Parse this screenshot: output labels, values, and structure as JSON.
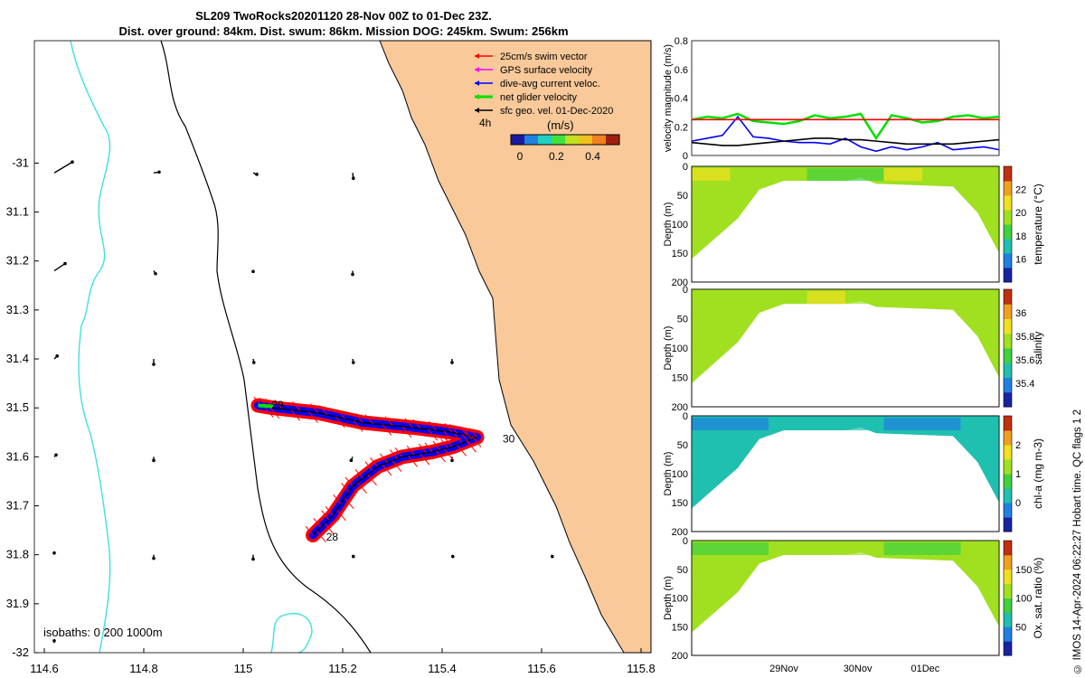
{
  "title_line1": "SL209 TwoRocks20201120 28-Nov 00Z to 01-Dec 23Z.",
  "title_line2": "Dist. over ground: 84km. Dist. swum: 86km. Mission DOG: 245km. Swum: 256km",
  "footer": "© IMOS 14-Apr-2024 06:22:27 Hobart time. QC flags 1  2",
  "colors": {
    "land": "#f9c99a",
    "coast": "#000000",
    "isobath": "#40e0e0",
    "track": "#0000ff",
    "swim": "#ff0000",
    "net": "#00e000",
    "geo": "#000000",
    "gps": "#ff00ff"
  },
  "chart_data": [
    {
      "type": "scatter",
      "name": "track map",
      "x_ticks": [
        "114.6",
        "114.8",
        "115",
        "115.2",
        "115.4",
        "115.6",
        "115.8"
      ],
      "y_ticks": [
        "-31",
        "31.1",
        "31.2",
        "31.3",
        "31.4",
        "31.5",
        "31.6",
        "31.7",
        "31.8",
        "31.9",
        "-32"
      ],
      "xlim": [
        114.58,
        115.82
      ],
      "ylim": [
        -32.0,
        -30.75
      ],
      "legend": [
        {
          "label": "25cm/s swim vector",
          "color": "#ff0000"
        },
        {
          "label": "GPS surface velocity",
          "color": "#ff00ff"
        },
        {
          "label": "dive-avg current veloc.",
          "color": "#0000ff"
        },
        {
          "label": "net glider velocity",
          "color": "#00e000"
        },
        {
          "label": "sfc geo. vel. 01-Dec-2020",
          "color": "#000000"
        }
      ],
      "legend_scale_label": "4h",
      "colorbar_label": "(m/s)",
      "colorbar_ticks": [
        "0",
        "0.2",
        "0.4"
      ],
      "isobath_note": "isobaths: 0   200  1000m",
      "day_labels": [
        "28",
        "29",
        "30"
      ],
      "track": [
        [
          115.14,
          -31.76
        ],
        [
          115.18,
          -31.72
        ],
        [
          115.22,
          -31.66
        ],
        [
          115.27,
          -31.62
        ],
        [
          115.32,
          -31.6
        ],
        [
          115.38,
          -31.59
        ],
        [
          115.42,
          -31.58
        ],
        [
          115.47,
          -31.56
        ],
        [
          115.42,
          -31.55
        ],
        [
          115.34,
          -31.54
        ],
        [
          115.24,
          -31.53
        ],
        [
          115.15,
          -31.51
        ],
        [
          115.06,
          -31.5
        ],
        [
          115.03,
          -31.495
        ]
      ],
      "geo_vectors": [
        {
          "lon": 114.62,
          "lat": -31.02,
          "u": 0.5,
          "v": 0.3
        },
        {
          "lon": 114.82,
          "lat": -31.02,
          "u": 0.15,
          "v": 0.02
        },
        {
          "lon": 115.02,
          "lat": -31.02,
          "u": 0.1,
          "v": -0.04
        },
        {
          "lon": 115.22,
          "lat": -31.02,
          "u": 0.02,
          "v": -0.15
        },
        {
          "lon": 114.62,
          "lat": -31.22,
          "u": 0.3,
          "v": 0.2
        },
        {
          "lon": 114.82,
          "lat": -31.22,
          "u": 0.05,
          "v": -0.08
        },
        {
          "lon": 115.02,
          "lat": -31.22,
          "u": 0.0,
          "v": -0.02
        },
        {
          "lon": 115.22,
          "lat": -31.22,
          "u": 0.0,
          "v": -0.1
        },
        {
          "lon": 114.62,
          "lat": -31.4,
          "u": 0.08,
          "v": 0.08
        },
        {
          "lon": 114.82,
          "lat": -31.4,
          "u": 0.0,
          "v": -0.15
        },
        {
          "lon": 115.02,
          "lat": -31.4,
          "u": 0.02,
          "v": -0.1
        },
        {
          "lon": 115.22,
          "lat": -31.4,
          "u": 0.02,
          "v": -0.1
        },
        {
          "lon": 115.42,
          "lat": -31.4,
          "u": 0.0,
          "v": -0.1
        },
        {
          "lon": 114.62,
          "lat": -31.6,
          "u": 0.05,
          "v": 0.05
        },
        {
          "lon": 114.82,
          "lat": -31.6,
          "u": 0.0,
          "v": -0.1
        },
        {
          "lon": 115.22,
          "lat": -31.6,
          "u": -0.04,
          "v": -0.1
        },
        {
          "lon": 115.42,
          "lat": -31.6,
          "u": 0.0,
          "v": -0.1
        },
        {
          "lon": 114.62,
          "lat": -31.8,
          "u": 0.0,
          "v": 0.05
        },
        {
          "lon": 114.82,
          "lat": -31.8,
          "u": 0.0,
          "v": -0.1
        },
        {
          "lon": 115.02,
          "lat": -31.8,
          "u": 0.0,
          "v": -0.12
        },
        {
          "lon": 115.22,
          "lat": -31.8,
          "u": 0.02,
          "v": -0.05
        },
        {
          "lon": 115.42,
          "lat": -31.8,
          "u": 0.02,
          "v": -0.05
        },
        {
          "lon": 115.62,
          "lat": -31.8,
          "u": 0.02,
          "v": -0.05
        },
        {
          "lon": 114.62,
          "lat": -31.98,
          "u": 0.0,
          "v": 0.06
        }
      ]
    },
    {
      "type": "line",
      "name": "velocity",
      "ylabel": "velocity magnitude (m/s)",
      "ylim": [
        0,
        0.8
      ],
      "y_ticks": [
        "0",
        "0.2",
        "0.4",
        "0.6",
        "0.8"
      ],
      "x": [
        0,
        0.05,
        0.1,
        0.15,
        0.2,
        0.25,
        0.3,
        0.35,
        0.4,
        0.45,
        0.5,
        0.55,
        0.6,
        0.65,
        0.7,
        0.75,
        0.8,
        0.85,
        0.9,
        0.95,
        1.0
      ],
      "series": [
        {
          "color": "#00e000",
          "values": [
            0.25,
            0.27,
            0.26,
            0.29,
            0.24,
            0.23,
            0.22,
            0.24,
            0.28,
            0.26,
            0.27,
            0.29,
            0.12,
            0.28,
            0.26,
            0.23,
            0.24,
            0.27,
            0.28,
            0.26,
            0.27
          ]
        },
        {
          "color": "#0000ff",
          "values": [
            0.1,
            0.12,
            0.14,
            0.27,
            0.13,
            0.12,
            0.1,
            0.09,
            0.09,
            0.08,
            0.12,
            0.06,
            0.03,
            0.06,
            0.04,
            0.06,
            0.09,
            0.04,
            0.05,
            0.06,
            0.04
          ]
        },
        {
          "color": "#000000",
          "values": [
            0.09,
            0.08,
            0.07,
            0.07,
            0.08,
            0.09,
            0.1,
            0.11,
            0.12,
            0.12,
            0.11,
            0.11,
            0.1,
            0.09,
            0.08,
            0.08,
            0.08,
            0.08,
            0.09,
            0.1,
            0.11
          ]
        },
        {
          "color": "#ff0000",
          "values": [
            0.25,
            0.25,
            0.25,
            0.25,
            0.25,
            0.25,
            0.25,
            0.25,
            0.25,
            0.25,
            0.25,
            0.25,
            0.25,
            0.25,
            0.25,
            0.25,
            0.25,
            0.25,
            0.25,
            0.25,
            0.25
          ]
        }
      ]
    },
    {
      "type": "heatmap",
      "name": "temperature",
      "ylabel": "Depth (m)",
      "ylim": [
        200,
        0
      ],
      "y_ticks": [
        "0",
        "50",
        "100",
        "150",
        "200"
      ],
      "colorbar_label": "temperature (°C)",
      "colorbar_ticks": [
        "16",
        "18",
        "20",
        "22"
      ],
      "palette": [
        "#1a22a0",
        "#2080e0",
        "#20c0b0",
        "#40d040",
        "#a0e020",
        "#f0e020",
        "#f0a020",
        "#c03010"
      ],
      "levels": [
        0.7,
        0.62,
        0.56,
        0.45,
        0.4
      ]
    },
    {
      "type": "heatmap",
      "name": "salinity",
      "ylabel": "Depth (m)",
      "ylim": [
        200,
        0
      ],
      "y_ticks": [
        "0",
        "50",
        "100",
        "150",
        "200"
      ],
      "colorbar_label": "salinity",
      "colorbar_ticks": [
        "35.4",
        "35.6",
        "35.8",
        "36"
      ],
      "palette": [
        "#1a22a0",
        "#2080e0",
        "#20c0b0",
        "#40d040",
        "#a0e020",
        "#f0e020",
        "#f0a020",
        "#c03010"
      ],
      "levels": [
        0.5,
        0.55,
        0.62,
        0.65,
        0.58
      ]
    },
    {
      "type": "heatmap",
      "name": "chl-a",
      "ylabel": "Depth (m)",
      "ylim": [
        200,
        0
      ],
      "y_ticks": [
        "0",
        "50",
        "100",
        "150",
        "200"
      ],
      "colorbar_label": "chl-a (mg m-3)",
      "colorbar_ticks": [
        "0",
        "1",
        "2"
      ],
      "palette": [
        "#1a22a0",
        "#2080e0",
        "#20c0b0",
        "#40d040",
        "#a0e020",
        "#f0e020",
        "#f0a020",
        "#c03010"
      ],
      "levels": [
        0.15,
        0.2,
        0.25,
        0.3,
        0.35
      ]
    },
    {
      "type": "heatmap",
      "name": "oxygen",
      "ylabel": "Depth (m)",
      "ylim": [
        200,
        0
      ],
      "y_ticks": [
        "0",
        "50",
        "100",
        "150",
        "200"
      ],
      "colorbar_label": "Ox. sat. ratio (%)",
      "colorbar_ticks": [
        "50",
        "100",
        "150"
      ],
      "x_ticks": [
        "29Nov",
        "30Nov",
        "01Dec"
      ],
      "palette": [
        "#1a22a0",
        "#2080e0",
        "#20c0b0",
        "#40d040",
        "#a0e020",
        "#f0e020",
        "#f0a020",
        "#c03010"
      ],
      "levels": [
        0.45,
        0.48,
        0.5,
        0.52,
        0.5
      ]
    }
  ]
}
